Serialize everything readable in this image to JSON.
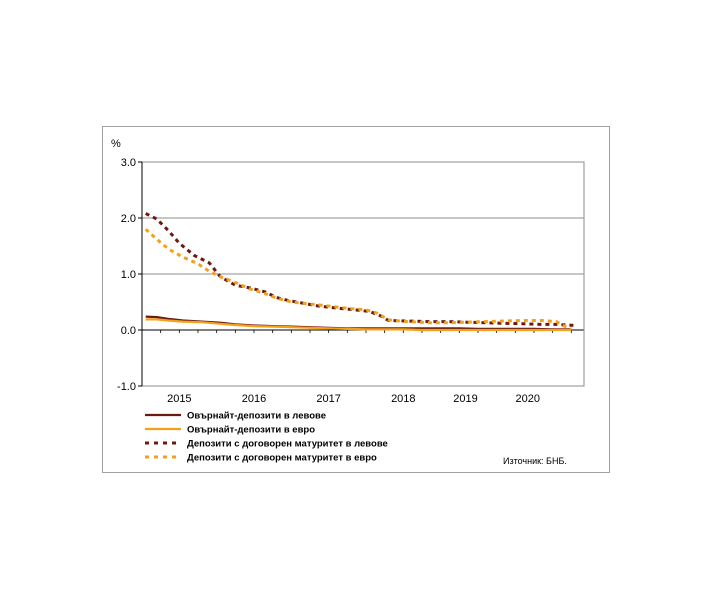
{
  "chart_data": {
    "type": "line",
    "yunit": "%",
    "ylim": [
      -1.0,
      3.0
    ],
    "yticks": [
      "3.0",
      "2.0",
      "1.0",
      "0.0",
      "-1.0"
    ],
    "xlim": [
      2014.75,
      2020.67
    ],
    "xticks": [
      {
        "label": "2015",
        "x": 2015.25
      },
      {
        "label": "2016",
        "x": 2016.25
      },
      {
        "label": "2017",
        "x": 2017.25
      },
      {
        "label": "2018",
        "x": 2018.25
      },
      {
        "label": "2019",
        "x": 2019.083
      },
      {
        "label": "2020",
        "x": 2019.917
      }
    ],
    "grid": true,
    "legend_position": "bottom-left",
    "source": "Източник: БНБ.",
    "series": [
      {
        "name": "Овърнайт-депозити в левове",
        "color": "#6b1a10",
        "dash": "solid",
        "points": [
          [
            2014.8,
            0.24
          ],
          [
            2014.95,
            0.23
          ],
          [
            2015.1,
            0.2
          ],
          [
            2015.3,
            0.17
          ],
          [
            2015.55,
            0.15
          ],
          [
            2015.8,
            0.13
          ],
          [
            2016.0,
            0.1
          ],
          [
            2016.25,
            0.08
          ],
          [
            2016.5,
            0.07
          ],
          [
            2016.75,
            0.06
          ],
          [
            2017.0,
            0.05
          ],
          [
            2017.25,
            0.04
          ],
          [
            2017.5,
            0.03
          ],
          [
            2017.75,
            0.03
          ],
          [
            2018.0,
            0.03
          ],
          [
            2018.25,
            0.03
          ],
          [
            2018.5,
            0.03
          ],
          [
            2018.75,
            0.03
          ],
          [
            2019.0,
            0.03
          ],
          [
            2019.25,
            0.02
          ],
          [
            2019.5,
            0.02
          ],
          [
            2019.75,
            0.02
          ],
          [
            2020.0,
            0.02
          ],
          [
            2020.25,
            0.01
          ],
          [
            2020.5,
            0.01
          ]
        ]
      },
      {
        "name": "Овърнайт-депозити в евро",
        "color": "#f5a01a",
        "dash": "solid",
        "points": [
          [
            2014.8,
            0.19
          ],
          [
            2014.95,
            0.19
          ],
          [
            2015.1,
            0.17
          ],
          [
            2015.3,
            0.15
          ],
          [
            2015.55,
            0.14
          ],
          [
            2015.8,
            0.11
          ],
          [
            2016.0,
            0.09
          ],
          [
            2016.25,
            0.07
          ],
          [
            2016.5,
            0.06
          ],
          [
            2016.75,
            0.05
          ],
          [
            2017.0,
            0.04
          ],
          [
            2017.25,
            0.03
          ],
          [
            2017.5,
            0.02
          ],
          [
            2017.75,
            0.01
          ],
          [
            2018.0,
            0.01
          ],
          [
            2018.25,
            0.01
          ],
          [
            2018.5,
            0.0
          ],
          [
            2018.75,
            0.0
          ],
          [
            2019.0,
            0.0
          ],
          [
            2019.25,
            0.0
          ],
          [
            2019.5,
            0.0
          ],
          [
            2019.75,
            0.0
          ],
          [
            2020.0,
            0.0
          ],
          [
            2020.25,
            0.0
          ],
          [
            2020.5,
            0.0
          ]
        ]
      },
      {
        "name": "Депозити с договорен матуритет в левове",
        "color": "#6b1a10",
        "dash": "dot",
        "points": [
          [
            2014.8,
            2.08
          ],
          [
            2014.95,
            1.98
          ],
          [
            2015.1,
            1.78
          ],
          [
            2015.25,
            1.55
          ],
          [
            2015.45,
            1.33
          ],
          [
            2015.65,
            1.2
          ],
          [
            2015.8,
            0.95
          ],
          [
            2016.0,
            0.8
          ],
          [
            2016.2,
            0.75
          ],
          [
            2016.4,
            0.68
          ],
          [
            2016.55,
            0.58
          ],
          [
            2016.7,
            0.53
          ],
          [
            2016.9,
            0.48
          ],
          [
            2017.1,
            0.43
          ],
          [
            2017.3,
            0.4
          ],
          [
            2017.45,
            0.38
          ],
          [
            2017.6,
            0.36
          ],
          [
            2017.8,
            0.33
          ],
          [
            2017.95,
            0.25
          ],
          [
            2018.05,
            0.17
          ],
          [
            2018.3,
            0.16
          ],
          [
            2018.6,
            0.15
          ],
          [
            2018.85,
            0.15
          ],
          [
            2019.1,
            0.14
          ],
          [
            2019.35,
            0.13
          ],
          [
            2019.6,
            0.12
          ],
          [
            2019.85,
            0.11
          ],
          [
            2020.1,
            0.1
          ],
          [
            2020.3,
            0.1
          ],
          [
            2020.55,
            0.08
          ]
        ]
      },
      {
        "name": "Депозити с договорен матуритет в евро",
        "color": "#f5a01a",
        "dash": "dot",
        "points": [
          [
            2014.8,
            1.8
          ],
          [
            2014.95,
            1.62
          ],
          [
            2015.1,
            1.45
          ],
          [
            2015.3,
            1.3
          ],
          [
            2015.5,
            1.18
          ],
          [
            2015.65,
            1.05
          ],
          [
            2015.8,
            0.95
          ],
          [
            2016.0,
            0.85
          ],
          [
            2016.2,
            0.73
          ],
          [
            2016.4,
            0.65
          ],
          [
            2016.55,
            0.57
          ],
          [
            2016.75,
            0.5
          ],
          [
            2016.95,
            0.47
          ],
          [
            2017.1,
            0.45
          ],
          [
            2017.3,
            0.42
          ],
          [
            2017.55,
            0.38
          ],
          [
            2017.75,
            0.36
          ],
          [
            2017.9,
            0.3
          ],
          [
            2018.05,
            0.18
          ],
          [
            2018.3,
            0.15
          ],
          [
            2018.6,
            0.13
          ],
          [
            2018.85,
            0.13
          ],
          [
            2019.1,
            0.14
          ],
          [
            2019.35,
            0.15
          ],
          [
            2019.6,
            0.16
          ],
          [
            2019.85,
            0.17
          ],
          [
            2020.1,
            0.17
          ],
          [
            2020.3,
            0.15
          ],
          [
            2020.42,
            0.06
          ],
          [
            2020.5,
            0.02
          ]
        ]
      }
    ]
  }
}
